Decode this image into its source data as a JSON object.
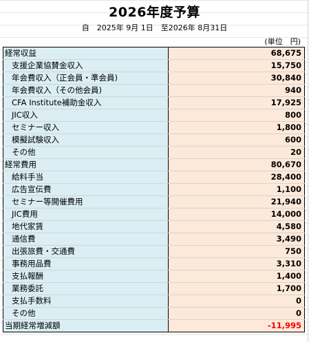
{
  "title": "2026年度予算",
  "period": "自　2025年 9月 1日　至2026年 8月31日",
  "unit": "(単位　円)",
  "rows": [
    {
      "label": "経常収益",
      "value": "68,675",
      "kind": "section"
    },
    {
      "label": "支援企業協賛金収入",
      "value": "15,750",
      "kind": "item"
    },
    {
      "label": "年会費収入（正会員・準会員)",
      "value": "30,840",
      "kind": "item"
    },
    {
      "label": "年会費収入（その他会員)",
      "value": "940",
      "kind": "item"
    },
    {
      "label": "CFA Institute補助金収入",
      "value": "17,925",
      "kind": "item"
    },
    {
      "label": "JIC収入",
      "value": "800",
      "kind": "item"
    },
    {
      "label": "セミナー収入",
      "value": "1,800",
      "kind": "item"
    },
    {
      "label": "模擬試験収入",
      "value": "600",
      "kind": "item"
    },
    {
      "label": "その他",
      "value": "20",
      "kind": "item"
    },
    {
      "label": "経常費用",
      "value": "80,670",
      "kind": "section"
    },
    {
      "label": "給料手当",
      "value": "28,400",
      "kind": "item"
    },
    {
      "label": "広告宣伝費",
      "value": "1,100",
      "kind": "item"
    },
    {
      "label": "セミナー等開催費用",
      "value": "21,940",
      "kind": "item"
    },
    {
      "label": "JIC費用",
      "value": "14,000",
      "kind": "item"
    },
    {
      "label": "地代家賃",
      "value": "4,580",
      "kind": "item"
    },
    {
      "label": "通信費",
      "value": "3,490",
      "kind": "item"
    },
    {
      "label": "出張旅費・交通費",
      "value": "750",
      "kind": "item"
    },
    {
      "label": "事務用品費",
      "value": "3,310",
      "kind": "item"
    },
    {
      "label": "支払報酬",
      "value": "1,400",
      "kind": "item"
    },
    {
      "label": "業務委託",
      "value": "1,700",
      "kind": "item"
    },
    {
      "label": "支払手数料",
      "value": "0",
      "kind": "item"
    },
    {
      "label": "その他",
      "value": "0",
      "kind": "item"
    },
    {
      "label": "当期経常増減額",
      "value": "-11,995",
      "kind": "section",
      "negative": true
    }
  ],
  "colors": {
    "label_bg": "#daeef3",
    "value_bg": "#fde9d9",
    "negative": "#ff0000"
  }
}
